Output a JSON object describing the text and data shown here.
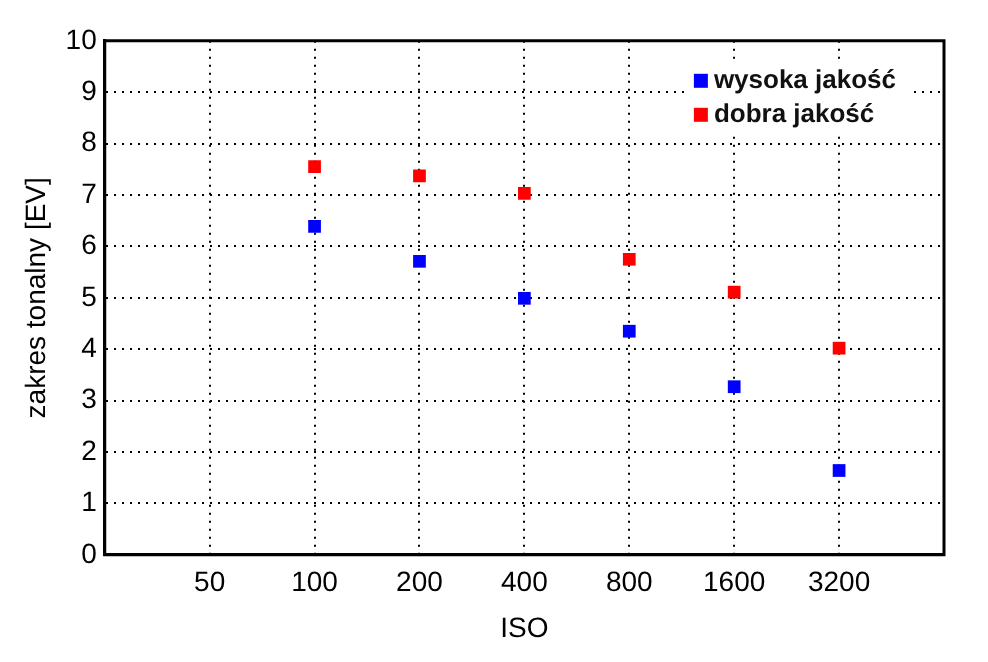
{
  "chart_data": {
    "type": "scatter",
    "xlabel": "ISO",
    "ylabel": "zakres tonalny [EV]",
    "x": [
      100,
      200,
      400,
      800,
      1600,
      3200
    ],
    "series": [
      {
        "name": "wysoka jakość",
        "color": "#0000ff",
        "values": [
          6.39,
          5.71,
          4.99,
          4.35,
          3.27,
          1.64
        ]
      },
      {
        "name": "dobra jakość",
        "color": "#ff0000",
        "values": [
          7.55,
          7.37,
          7.03,
          5.75,
          5.11,
          4.02
        ]
      }
    ],
    "log": "x",
    "xlim": [
      25,
      6400
    ],
    "xticks": [
      50,
      100,
      200,
      400,
      800,
      1600,
      3200
    ],
    "ylim": [
      0,
      10
    ],
    "yticks": [
      0,
      1,
      2,
      3,
      4,
      5,
      6,
      7,
      8,
      9,
      10
    ],
    "grid": true,
    "legend": "top right",
    "marker": "square"
  }
}
